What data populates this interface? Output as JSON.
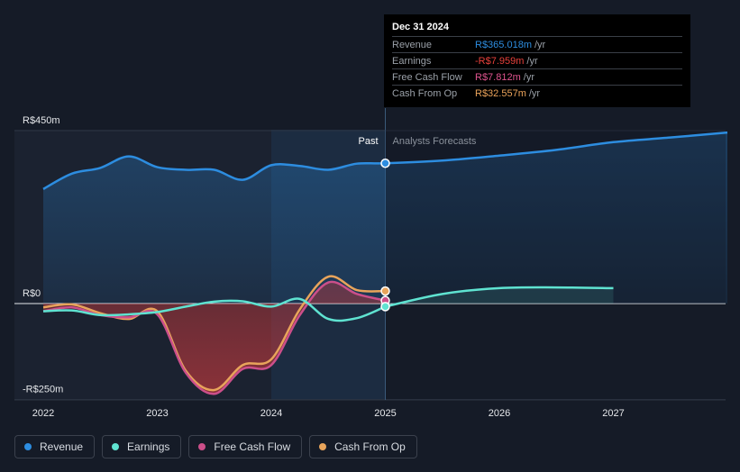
{
  "tooltip": {
    "date": "Dec 31 2024",
    "rows": [
      {
        "label": "Revenue",
        "value": "R$365.018m",
        "unit": "/yr",
        "color": "#2d8de0"
      },
      {
        "label": "Earnings",
        "value": "-R$7.959m",
        "unit": "/yr",
        "color": "#e8413b"
      },
      {
        "label": "Free Cash Flow",
        "value": "R$7.812m",
        "unit": "/yr",
        "color": "#e0548f"
      },
      {
        "label": "Cash From Op",
        "value": "R$32.557m",
        "unit": "/yr",
        "color": "#eba35a"
      }
    ]
  },
  "legend": [
    {
      "label": "Revenue",
      "color": "#2d8de0"
    },
    {
      "label": "Earnings",
      "color": "#5fe3d1"
    },
    {
      "label": "Free Cash Flow",
      "color": "#cc4f8a"
    },
    {
      "label": "Cash From Op",
      "color": "#e8a45b"
    }
  ],
  "chart_data": {
    "type": "line",
    "title": "",
    "xlabel": "",
    "ylabel": "",
    "xlim": [
      2022.0,
      2028.0
    ],
    "ylim": [
      -250,
      450
    ],
    "y_tick_labels": [
      {
        "value": 450,
        "label": "R$450m"
      },
      {
        "value": 0,
        "label": "R$0"
      },
      {
        "value": -250,
        "label": "-R$250m"
      }
    ],
    "x_tick_labels": [
      {
        "value": 2022,
        "label": "2022"
      },
      {
        "value": 2023,
        "label": "2023"
      },
      {
        "value": 2024,
        "label": "2024"
      },
      {
        "value": 2025,
        "label": "2025"
      },
      {
        "value": 2026,
        "label": "2026"
      },
      {
        "value": 2027,
        "label": "2027"
      }
    ],
    "divider": {
      "x": 2025.0,
      "past_label": "Past",
      "forecast_label": "Analysts Forecasts"
    },
    "highlight_range": [
      2024.0,
      2025.0
    ],
    "series": [
      {
        "name": "Revenue",
        "color": "#2d8de0",
        "fill": true,
        "points": [
          [
            2022.0,
            298
          ],
          [
            2022.25,
            338
          ],
          [
            2022.5,
            353
          ],
          [
            2022.75,
            383
          ],
          [
            2023.0,
            355
          ],
          [
            2023.25,
            348
          ],
          [
            2023.5,
            348
          ],
          [
            2023.75,
            322
          ],
          [
            2024.0,
            360
          ],
          [
            2024.25,
            358
          ],
          [
            2024.5,
            348
          ],
          [
            2024.75,
            364
          ],
          [
            2025.0,
            365.018
          ]
        ],
        "forecast": [
          [
            2025.0,
            365.018
          ],
          [
            2025.5,
            372
          ],
          [
            2026.0,
            385
          ],
          [
            2026.5,
            400
          ],
          [
            2027.0,
            420
          ],
          [
            2027.5,
            432
          ],
          [
            2028.0,
            445
          ]
        ]
      },
      {
        "name": "Earnings",
        "color": "#5fe3d1",
        "fill": false,
        "points": [
          [
            2022.0,
            -20
          ],
          [
            2022.25,
            -18
          ],
          [
            2022.5,
            -30
          ],
          [
            2022.75,
            -28
          ],
          [
            2023.0,
            -22
          ],
          [
            2023.25,
            -8
          ],
          [
            2023.5,
            5
          ],
          [
            2023.75,
            6
          ],
          [
            2024.0,
            -8
          ],
          [
            2024.25,
            12
          ],
          [
            2024.5,
            -40
          ],
          [
            2024.75,
            -38
          ],
          [
            2025.0,
            -7.959
          ]
        ],
        "forecast": [
          [
            2025.0,
            -7.959
          ],
          [
            2025.5,
            25
          ],
          [
            2026.0,
            40
          ],
          [
            2026.5,
            42
          ],
          [
            2027.0,
            40
          ]
        ]
      },
      {
        "name": "Free Cash Flow",
        "color": "#cc4f8a",
        "fill": true,
        "points": [
          [
            2022.0,
            -20
          ],
          [
            2022.25,
            -10
          ],
          [
            2022.5,
            -30
          ],
          [
            2022.75,
            -36
          ],
          [
            2023.0,
            -28
          ],
          [
            2023.25,
            -180
          ],
          [
            2023.5,
            -235
          ],
          [
            2023.75,
            -170
          ],
          [
            2024.0,
            -160
          ],
          [
            2024.25,
            -30
          ],
          [
            2024.5,
            55
          ],
          [
            2024.75,
            25
          ],
          [
            2025.0,
            7.812
          ]
        ]
      },
      {
        "name": "Cash From Op",
        "color": "#e8a45b",
        "fill": false,
        "points": [
          [
            2022.0,
            -10
          ],
          [
            2022.25,
            -2
          ],
          [
            2022.5,
            -25
          ],
          [
            2022.75,
            -40
          ],
          [
            2023.0,
            -20
          ],
          [
            2023.25,
            -175
          ],
          [
            2023.5,
            -225
          ],
          [
            2023.75,
            -160
          ],
          [
            2024.0,
            -145
          ],
          [
            2024.25,
            -15
          ],
          [
            2024.5,
            70
          ],
          [
            2024.75,
            35
          ],
          [
            2025.0,
            32.557
          ]
        ]
      }
    ]
  }
}
